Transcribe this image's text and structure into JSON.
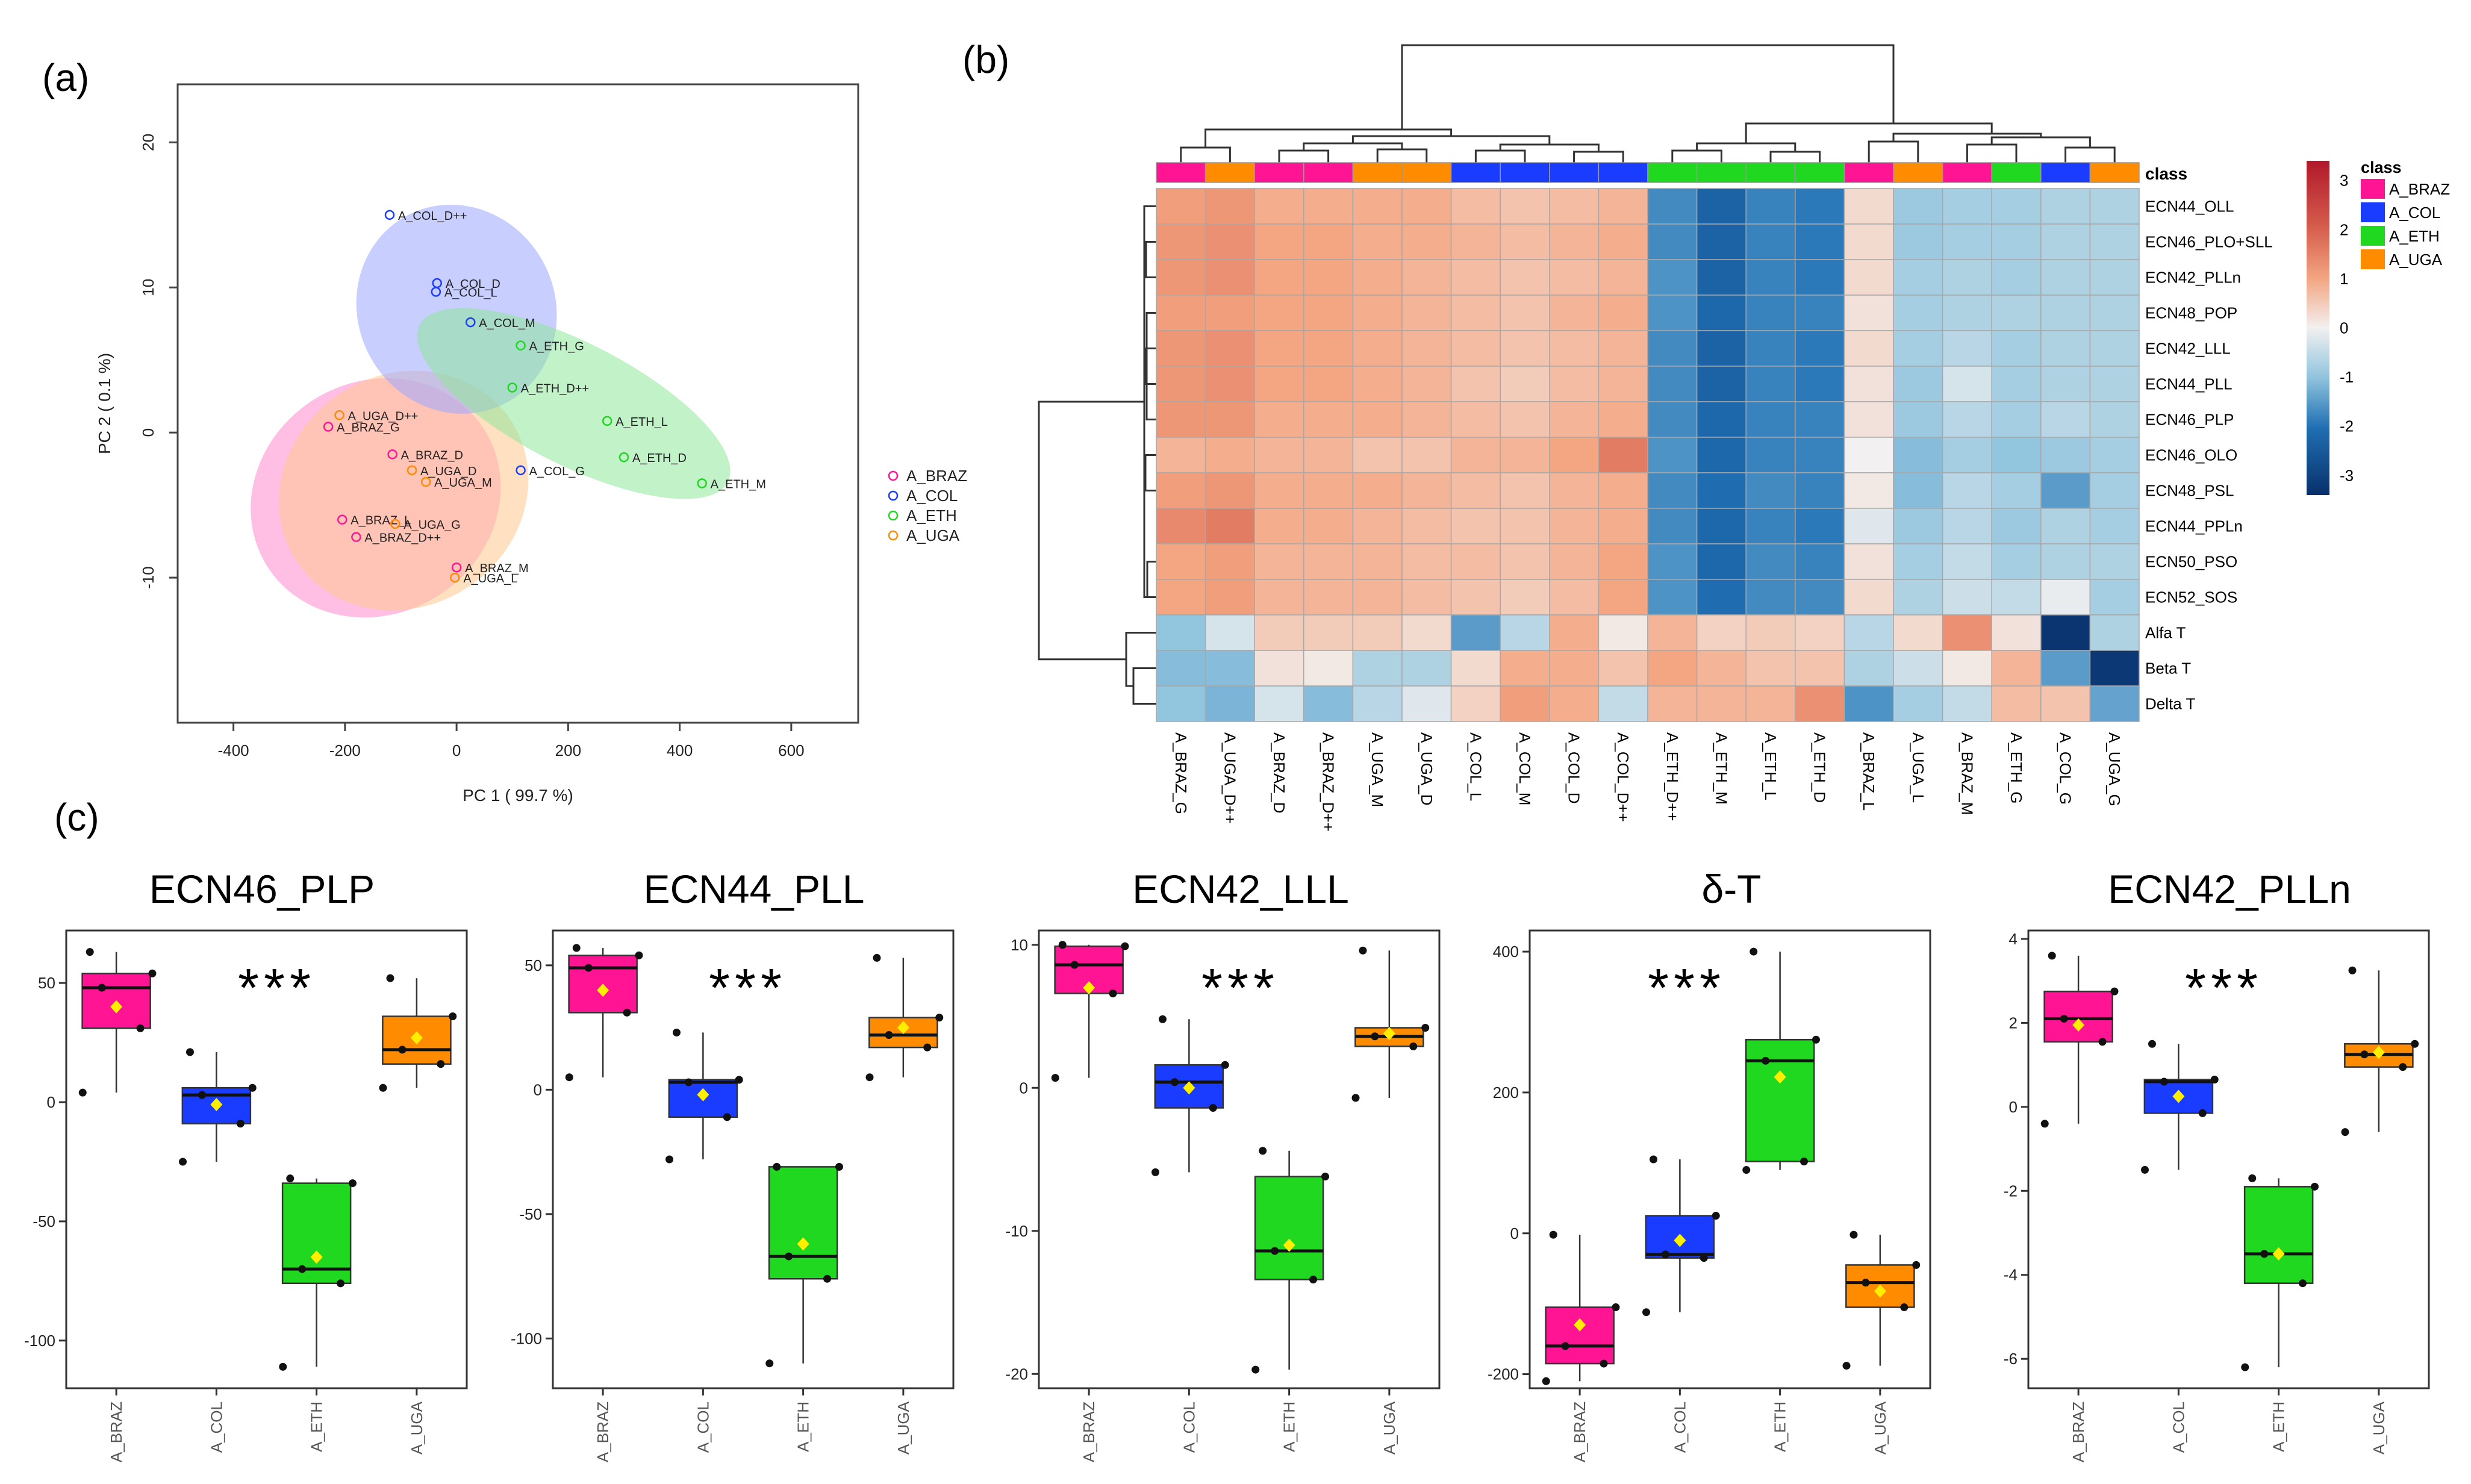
{
  "panel_labels": [
    "(a)",
    "(b)",
    "(c)"
  ],
  "colors": {
    "A_BRAZ": "#ff1493",
    "A_COL": "#1a3cff",
    "A_ETH": "#1fd81f",
    "A_UGA": "#ff8c00"
  },
  "ellipse_colors": {
    "A_BRAZ": "#ff8ad0",
    "A_COL": "#9aa8ff",
    "A_ETH": "#8fe89a",
    "A_UGA": "#ffc990"
  },
  "heatmap_colors": {
    "low": "#07306b",
    "mid": "#f2f0f0",
    "high": "#b2182b"
  },
  "chart_data": [
    {
      "type": "scatter",
      "panel": "(a)",
      "xlabel": "PC 1 ( 99.7 %)",
      "ylabel": "PC 2 ( 0.1 %)",
      "xlim": [
        -500,
        720
      ],
      "ylim": [
        -20,
        24
      ],
      "xticks": [
        -400,
        -200,
        0,
        200,
        400,
        600
      ],
      "yticks": [
        -10,
        0,
        10,
        20
      ],
      "xtick_labels": [
        "-400",
        "-200",
        "0",
        "200",
        "400",
        "600"
      ],
      "ytick_labels": [
        "-10",
        "0",
        "10",
        "20"
      ],
      "legend": [
        {
          "label": "A_BRAZ",
          "group": "A_BRAZ"
        },
        {
          "label": "A_COL",
          "group": "A_COL"
        },
        {
          "label": "A_ETH",
          "group": "A_ETH"
        },
        {
          "label": "A_UGA",
          "group": "A_UGA"
        }
      ],
      "ellipses": [
        {
          "group": "A_BRAZ",
          "cx": -145,
          "cy": -4.5,
          "rx": 230,
          "ry": 8.0,
          "angle": -32
        },
        {
          "group": "A_UGA",
          "cx": -95,
          "cy": -4.0,
          "rx": 230,
          "ry": 8.0,
          "angle": -33
        },
        {
          "group": "A_COL",
          "cx": 0,
          "cy": 8.5,
          "rx": 190,
          "ry": 6.8,
          "angle": 63
        },
        {
          "group": "A_ETH",
          "cx": 210,
          "cy": 2.0,
          "rx": 310,
          "ry": 4.2,
          "angle": 27
        }
      ],
      "points": [
        {
          "label": "A_COL_D++",
          "group": "A_COL",
          "x": -120,
          "y": 15.0
        },
        {
          "label": "A_COL_D",
          "group": "A_COL",
          "x": -35,
          "y": 10.3
        },
        {
          "label": "A_COL_L",
          "group": "A_COL",
          "x": -37,
          "y": 9.7
        },
        {
          "label": "A_COL_M",
          "group": "A_COL",
          "x": 25,
          "y": 7.6
        },
        {
          "label": "A_COL_G",
          "group": "A_COL",
          "x": 115,
          "y": -2.6
        },
        {
          "label": "A_ETH_G",
          "group": "A_ETH",
          "x": 115,
          "y": 6.0
        },
        {
          "label": "A_ETH_D++",
          "group": "A_ETH",
          "x": 100,
          "y": 3.1
        },
        {
          "label": "A_ETH_L",
          "group": "A_ETH",
          "x": 270,
          "y": 0.8
        },
        {
          "label": "A_ETH_D",
          "group": "A_ETH",
          "x": 300,
          "y": -1.7
        },
        {
          "label": "A_ETH_M",
          "group": "A_ETH",
          "x": 440,
          "y": -3.5
        },
        {
          "label": "A_UGA_D++",
          "group": "A_UGA",
          "x": -210,
          "y": 1.2
        },
        {
          "label": "A_BRAZ_G",
          "group": "A_BRAZ",
          "x": -230,
          "y": 0.4
        },
        {
          "label": "A_BRAZ_D",
          "group": "A_BRAZ",
          "x": -115,
          "y": -1.5
        },
        {
          "label": "A_UGA_D",
          "group": "A_UGA",
          "x": -80,
          "y": -2.6
        },
        {
          "label": "A_UGA_M",
          "group": "A_UGA",
          "x": -55,
          "y": -3.4
        },
        {
          "label": "A_BRAZ_L",
          "group": "A_BRAZ",
          "x": -205,
          "y": -6.0
        },
        {
          "label": "A_UGA_G",
          "group": "A_UGA",
          "x": -110,
          "y": -6.3
        },
        {
          "label": "A_BRAZ_D++",
          "group": "A_BRAZ",
          "x": -180,
          "y": -7.2
        },
        {
          "label": "A_BRAZ_M",
          "group": "A_BRAZ",
          "x": 0,
          "y": -9.3
        },
        {
          "label": "A_UGA_L",
          "group": "A_UGA",
          "x": -3,
          "y": -10.0
        }
      ]
    },
    {
      "type": "heatmap",
      "panel": "(b)",
      "class_header": "class",
      "legend_title": "class",
      "color_scale_labels": [
        "3",
        "2",
        "1",
        "0",
        "-1",
        "-2",
        "-3"
      ],
      "color_scale_range": [
        -3.4,
        3.4
      ],
      "class_legend": [
        "A_BRAZ",
        "A_COL",
        "A_ETH",
        "A_UGA"
      ],
      "columns": [
        "A_BRAZ_G",
        "A_UGA_D++",
        "A_BRAZ_D",
        "A_BRAZ_D++",
        "A_UGA_M",
        "A_UGA_D",
        "A_COL_L",
        "A_COL_M",
        "A_COL_D",
        "A_COL_D++",
        "A_ETH_D++",
        "A_ETH_M",
        "A_ETH_L",
        "A_ETH_D",
        "A_BRAZ_L",
        "A_UGA_L",
        "A_BRAZ_M",
        "A_ETH_G",
        "A_COL_G",
        "A_UGA_G"
      ],
      "column_classes": [
        "A_BRAZ",
        "A_UGA",
        "A_BRAZ",
        "A_BRAZ",
        "A_UGA",
        "A_UGA",
        "A_COL",
        "A_COL",
        "A_COL",
        "A_COL",
        "A_ETH",
        "A_ETH",
        "A_ETH",
        "A_ETH",
        "A_BRAZ",
        "A_UGA",
        "A_BRAZ",
        "A_ETH",
        "A_COL",
        "A_UGA"
      ],
      "rows": [
        "ECN44_OLL",
        "ECN46_PLO+SLL",
        "ECN42_PLLn",
        "ECN48_POP",
        "ECN42_LLL",
        "ECN44_PLL",
        "ECN46_PLP",
        "ECN46_OLO",
        "ECN48_PSL",
        "ECN44_PPLn",
        "ECN50_PSO",
        "ECN52_SOS",
        "Alfa T",
        "Beta T",
        "Delta T"
      ],
      "values": [
        [
          1.1,
          1.2,
          0.9,
          0.9,
          0.9,
          0.9,
          0.7,
          0.6,
          0.7,
          0.8,
          -1.7,
          -2.3,
          -1.8,
          -1.9,
          0.3,
          -0.9,
          -0.8,
          -0.8,
          -0.7,
          -0.7
        ],
        [
          1.2,
          1.3,
          1.0,
          1.0,
          0.9,
          0.9,
          0.8,
          0.7,
          0.8,
          0.9,
          -1.7,
          -2.3,
          -1.8,
          -1.9,
          0.3,
          -0.9,
          -0.8,
          -0.8,
          -0.7,
          -0.7
        ],
        [
          1.2,
          1.3,
          1.0,
          1.0,
          0.9,
          0.8,
          0.7,
          0.6,
          0.7,
          0.8,
          -1.6,
          -2.3,
          -1.8,
          -1.9,
          0.3,
          -0.8,
          -0.7,
          -0.8,
          -0.7,
          -0.7
        ],
        [
          1.1,
          1.1,
          1.0,
          1.0,
          0.9,
          0.8,
          0.7,
          0.6,
          0.8,
          0.9,
          -1.6,
          -2.2,
          -1.8,
          -1.8,
          0.2,
          -0.8,
          -0.7,
          -0.7,
          -0.7,
          -0.7
        ],
        [
          1.2,
          1.3,
          1.0,
          1.0,
          0.9,
          0.8,
          0.7,
          0.6,
          0.7,
          0.8,
          -1.7,
          -2.3,
          -1.8,
          -1.9,
          0.3,
          -0.8,
          -0.6,
          -0.8,
          -0.7,
          -0.7
        ],
        [
          1.2,
          1.3,
          1.0,
          1.0,
          0.9,
          0.8,
          0.6,
          0.5,
          0.7,
          0.8,
          -1.7,
          -2.3,
          -1.8,
          -1.9,
          0.2,
          -0.9,
          -0.3,
          -0.8,
          -0.7,
          -0.7
        ],
        [
          1.2,
          1.2,
          0.9,
          0.9,
          0.9,
          0.8,
          0.7,
          0.6,
          0.8,
          0.9,
          -1.7,
          -2.2,
          -1.8,
          -1.8,
          0.2,
          -0.9,
          -0.6,
          -0.8,
          -0.6,
          -0.7
        ],
        [
          0.8,
          0.9,
          0.8,
          0.8,
          0.6,
          0.6,
          0.8,
          0.8,
          1.0,
          1.6,
          -1.6,
          -2.2,
          -1.8,
          -1.8,
          0.0,
          -1.1,
          -0.8,
          -1.0,
          -0.9,
          -0.8
        ],
        [
          1.1,
          1.2,
          0.9,
          0.9,
          0.9,
          0.8,
          0.7,
          0.6,
          0.8,
          0.9,
          -1.7,
          -2.1,
          -1.7,
          -1.8,
          0.1,
          -1.1,
          -0.6,
          -0.8,
          -1.5,
          -0.8
        ],
        [
          1.4,
          1.6,
          0.9,
          0.9,
          0.8,
          0.7,
          0.6,
          0.6,
          0.8,
          0.9,
          -1.7,
          -2.2,
          -1.8,
          -1.9,
          -0.2,
          -0.9,
          -0.6,
          -0.9,
          -0.7,
          -0.8
        ],
        [
          1.0,
          1.1,
          0.8,
          0.8,
          0.8,
          0.7,
          0.7,
          0.6,
          0.8,
          1.0,
          -1.6,
          -2.2,
          -1.7,
          -1.8,
          0.2,
          -0.8,
          -0.5,
          -0.8,
          -0.7,
          -0.7
        ],
        [
          1.0,
          1.1,
          0.8,
          0.8,
          0.8,
          0.7,
          0.6,
          0.5,
          0.7,
          1.0,
          -1.6,
          -2.1,
          -1.7,
          -1.7,
          0.3,
          -0.7,
          -0.4,
          -0.5,
          -0.1,
          -0.8
        ],
        [
          -1.0,
          -0.3,
          0.5,
          0.5,
          0.5,
          0.3,
          -1.5,
          -0.6,
          0.9,
          0.1,
          0.8,
          0.4,
          0.5,
          0.4,
          -0.6,
          0.3,
          1.3,
          0.2,
          -3.3,
          -0.7
        ],
        [
          -1.1,
          -1.1,
          0.2,
          0.1,
          -0.7,
          -0.7,
          0.3,
          0.9,
          0.9,
          0.6,
          1.0,
          0.8,
          0.6,
          0.6,
          -0.7,
          -0.4,
          0.1,
          0.8,
          -1.5,
          -3.2
        ],
        [
          -1.0,
          -1.2,
          -0.3,
          -1.1,
          -0.6,
          -0.2,
          0.4,
          1.1,
          0.9,
          -0.5,
          0.8,
          0.8,
          0.8,
          1.3,
          -1.6,
          -0.8,
          -0.5,
          0.7,
          0.6,
          -1.4
        ]
      ]
    },
    {
      "type": "box",
      "panel": "(c)",
      "title": "ECN46_PLP",
      "significance": "***",
      "categories": [
        "A_BRAZ",
        "A_COL",
        "A_ETH",
        "A_UGA"
      ],
      "ylim": [
        -120,
        72
      ],
      "yticks": [
        -100,
        -50,
        0,
        50
      ],
      "ytick_labels": [
        "-100",
        "-50",
        "0",
        "50"
      ],
      "boxes": [
        {
          "q1": 31,
          "median": 48,
          "q3": 54,
          "whisker_low": 4,
          "whisker_high": 63,
          "mean": 40,
          "points": [
            4,
            31,
            48,
            54,
            63
          ]
        },
        {
          "q1": -9,
          "median": 3,
          "q3": 6,
          "whisker_low": -25,
          "whisker_high": 21,
          "mean": -1,
          "points": [
            -25,
            -9,
            3,
            6,
            21
          ]
        },
        {
          "q1": -76,
          "median": -70,
          "q3": -34,
          "whisker_low": -111,
          "whisker_high": -32,
          "mean": -65,
          "points": [
            -111,
            -76,
            -70,
            -34,
            -32
          ]
        },
        {
          "q1": 16,
          "median": 22,
          "q3": 36,
          "whisker_low": 6,
          "whisker_high": 52,
          "mean": 27,
          "points": [
            6,
            16,
            22,
            36,
            52
          ]
        }
      ]
    },
    {
      "type": "box",
      "panel": "(c)",
      "title": "ECN44_PLL",
      "significance": "***",
      "categories": [
        "A_BRAZ",
        "A_COL",
        "A_ETH",
        "A_UGA"
      ],
      "ylim": [
        -120,
        64
      ],
      "yticks": [
        -100,
        -50,
        0,
        50
      ],
      "ytick_labels": [
        "-100",
        "-50",
        "0",
        "50"
      ],
      "boxes": [
        {
          "q1": 31,
          "median": 49,
          "q3": 54,
          "whisker_low": 5,
          "whisker_high": 57,
          "mean": 40,
          "points": [
            5,
            31,
            49,
            54,
            57
          ]
        },
        {
          "q1": -11,
          "median": 3,
          "q3": 4,
          "whisker_low": -28,
          "whisker_high": 23,
          "mean": -2,
          "points": [
            -28,
            -11,
            3,
            4,
            23
          ]
        },
        {
          "q1": -76,
          "median": -67,
          "q3": -31,
          "whisker_low": -110,
          "whisker_high": -31,
          "mean": -62,
          "points": [
            -110,
            -76,
            -67,
            -31,
            -31
          ]
        },
        {
          "q1": 17,
          "median": 22,
          "q3": 29,
          "whisker_low": 5,
          "whisker_high": 53,
          "mean": 25,
          "points": [
            5,
            17,
            22,
            29,
            53
          ]
        }
      ]
    },
    {
      "type": "box",
      "panel": "(c)",
      "title": "ECN42_LLL",
      "significance": "***",
      "categories": [
        "A_BRAZ",
        "A_COL",
        "A_ETH",
        "A_UGA"
      ],
      "ylim": [
        -21,
        11
      ],
      "yticks": [
        -20,
        -10,
        0,
        10
      ],
      "ytick_labels": [
        "-20",
        "-10",
        "0",
        "10"
      ],
      "boxes": [
        {
          "q1": 6.6,
          "median": 8.6,
          "q3": 9.9,
          "whisker_low": 0.7,
          "whisker_high": 10.0,
          "mean": 7.0,
          "points": [
            0.7,
            6.6,
            8.6,
            9.9,
            10.0
          ]
        },
        {
          "q1": -1.4,
          "median": 0.4,
          "q3": 1.6,
          "whisker_low": -5.9,
          "whisker_high": 4.8,
          "mean": 0.0,
          "points": [
            -5.9,
            -1.4,
            0.4,
            1.6,
            4.8
          ]
        },
        {
          "q1": -13.4,
          "median": -11.4,
          "q3": -6.2,
          "whisker_low": -19.7,
          "whisker_high": -4.4,
          "mean": -11.0,
          "points": [
            -19.7,
            -13.4,
            -11.4,
            -6.2,
            -4.4
          ]
        },
        {
          "q1": 2.9,
          "median": 3.6,
          "q3": 4.2,
          "whisker_low": -0.7,
          "whisker_high": 9.6,
          "mean": 3.8,
          "points": [
            -0.7,
            2.9,
            3.6,
            4.2,
            9.6
          ]
        }
      ]
    },
    {
      "type": "box",
      "panel": "(c)",
      "title": "δ-T",
      "significance": "***",
      "categories": [
        "A_BRAZ",
        "A_COL",
        "A_ETH",
        "A_UGA"
      ],
      "ylim": [
        -220,
        430
      ],
      "yticks": [
        -200,
        0,
        200,
        400
      ],
      "ytick_labels": [
        "-200",
        "0",
        "200",
        "400"
      ],
      "boxes": [
        {
          "q1": -185,
          "median": -160,
          "q3": -105,
          "whisker_low": -210,
          "whisker_high": -2,
          "mean": -130,
          "points": [
            -210,
            -185,
            -160,
            -105,
            -2
          ]
        },
        {
          "q1": -35,
          "median": -30,
          "q3": 25,
          "whisker_low": -112,
          "whisker_high": 105,
          "mean": -10,
          "points": [
            -112,
            -35,
            -30,
            25,
            105
          ]
        },
        {
          "q1": 102,
          "median": 245,
          "q3": 275,
          "whisker_low": 90,
          "whisker_high": 400,
          "mean": 222,
          "points": [
            90,
            102,
            245,
            275,
            400
          ]
        },
        {
          "q1": -105,
          "median": -70,
          "q3": -45,
          "whisker_low": -188,
          "whisker_high": -2,
          "mean": -82,
          "points": [
            -188,
            -105,
            -70,
            -45,
            -2
          ]
        }
      ]
    },
    {
      "type": "box",
      "panel": "(c)",
      "title": "ECN42_PLLn",
      "significance": "***",
      "categories": [
        "A_BRAZ",
        "A_COL",
        "A_ETH",
        "A_UGA"
      ],
      "ylim": [
        -6.7,
        4.2
      ],
      "yticks": [
        -6,
        -4,
        -2,
        0,
        2,
        4
      ],
      "ytick_labels": [
        "-6",
        "-4",
        "-2",
        "0",
        "2",
        "4"
      ],
      "boxes": [
        {
          "q1": 1.55,
          "median": 2.1,
          "q3": 2.75,
          "whisker_low": -0.4,
          "whisker_high": 3.6,
          "mean": 1.95,
          "points": [
            -0.4,
            1.55,
            2.1,
            2.75,
            3.6
          ]
        },
        {
          "q1": -0.15,
          "median": 0.6,
          "q3": 0.65,
          "whisker_low": -1.5,
          "whisker_high": 1.5,
          "mean": 0.25,
          "points": [
            -1.5,
            -0.15,
            0.6,
            0.65,
            1.5
          ]
        },
        {
          "q1": -4.2,
          "median": -3.5,
          "q3": -1.9,
          "whisker_low": -6.2,
          "whisker_high": -1.7,
          "mean": -3.5,
          "points": [
            -6.2,
            -4.2,
            -3.5,
            -1.9,
            -1.7
          ]
        },
        {
          "q1": 0.95,
          "median": 1.25,
          "q3": 1.5,
          "whisker_low": -0.6,
          "whisker_high": 3.25,
          "mean": 1.3,
          "points": [
            -0.6,
            0.95,
            1.25,
            1.5,
            3.25
          ]
        }
      ]
    }
  ]
}
